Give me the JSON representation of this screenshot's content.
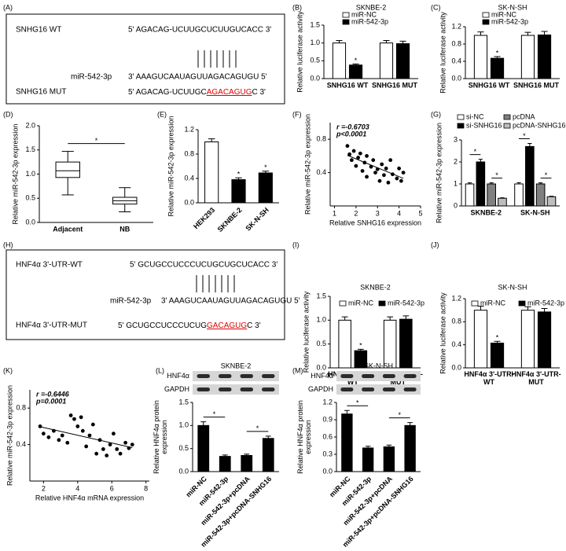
{
  "panel_labels": [
    "(A)",
    "(B)",
    "(C)",
    "(D)",
    "(E)",
    "(F)",
    "(G)",
    "(H)",
    "(I)",
    "(J)",
    "(K)",
    "(L)",
    "(M)"
  ],
  "sequences": [
    {
      "rows": [
        {
          "name": "SNHG16 WT",
          "seq": "5' AGACAG-UCUUGCUCUUGUCACC 3'"
        },
        {
          "name": "miR-542-3p",
          "seq": "3' AAAGUCAAUAGUUAGACAGUGU 5'"
        },
        {
          "name": "SNHG16 MUT",
          "seq": "5' AGACAG-UCUUGC",
          "mutation": "AGACAGUG",
          "tail": "C 3'"
        }
      ]
    },
    {
      "rows": [
        {
          "name": "HNF4α 3'-UTR-WT",
          "seq": "5' GCUGCCUCCCUCUGCUGCUCACC 3'"
        },
        {
          "name": "miR-542-3p",
          "seq": "3' AAAGUCAAUAGUUAGACAGUGU 5'"
        },
        {
          "name": "HNF4α 3'-UTR-MUT",
          "seq": "5' GCUGCCUCCCUCUG",
          "mutation": "GACAGUG",
          "tail": "C 3'"
        }
      ]
    }
  ],
  "chart_data": [
    {
      "type": "bar",
      "title": "SKNBE-2",
      "ylabel": "Relative luciferase activity",
      "categories": [
        "SNHG16 WT",
        "SNHG16 MUT"
      ],
      "series": [
        {
          "name": "miR-NC",
          "color": "#ffffff",
          "values": [
            1.0,
            1.0
          ],
          "errors": [
            0.07,
            0.07
          ]
        },
        {
          "name": "miR-542-3p",
          "color": "#000000",
          "values": [
            0.38,
            0.98
          ],
          "errors": [
            0.03,
            0.07
          ]
        }
      ],
      "ylim": [
        0,
        1.5
      ],
      "yticks": [
        {
          "value": 0,
          "label": "0.0"
        },
        {
          "value": 0.5,
          "label": "0.5"
        },
        {
          "value": 1,
          "label": "1.0"
        },
        {
          "value": 1.5,
          "label": "1.5"
        }
      ],
      "annotations": [
        "*"
      ]
    },
    {
      "type": "bar",
      "title": "SK-N-SH",
      "ylabel": "Relative luciferase activity",
      "categories": [
        "SNHG16 WT",
        "SNHG16 MUT"
      ],
      "series": [
        {
          "name": "miR-NC",
          "color": "#ffffff",
          "values": [
            1.0,
            1.0
          ],
          "errors": [
            0.08,
            0.07
          ]
        },
        {
          "name": "miR-542-3p",
          "color": "#000000",
          "values": [
            0.47,
            1.01
          ],
          "errors": [
            0.04,
            0.08
          ]
        }
      ],
      "ylim": [
        0,
        1.2
      ],
      "yticks": [
        {
          "value": 0,
          "label": "0.0"
        },
        {
          "value": 0.4,
          "label": "0.4"
        },
        {
          "value": 0.8,
          "label": "0.8"
        },
        {
          "value": 1.2,
          "label": "1.2"
        }
      ],
      "annotations": [
        "*"
      ]
    },
    {
      "type": "box",
      "ylabel": "Relative miR-542-3p expression",
      "categories": [
        "Adjacent",
        "NB"
      ],
      "boxes": [
        {
          "min": 0.57,
          "q1": 0.93,
          "median": 1.07,
          "q3": 1.25,
          "max": 1.47
        },
        {
          "min": 0.22,
          "q1": 0.38,
          "median": 0.45,
          "q3": 0.52,
          "max": 0.72
        }
      ],
      "ylim": [
        0,
        2
      ],
      "yticks": [
        {
          "value": 0,
          "label": "0.0"
        },
        {
          "value": 0.5,
          "label": "0.5"
        },
        {
          "value": 1,
          "label": "1.0"
        },
        {
          "value": 1.5,
          "label": "1.5"
        },
        {
          "value": 2,
          "label": "2.0"
        }
      ],
      "annotations": [
        "*"
      ]
    },
    {
      "type": "bar",
      "ylabel": "Relative miR-542-3p expression",
      "categories": [
        "HEK293",
        "SKNBE-2",
        "SK-N-SH"
      ],
      "series": [
        {
          "colors": [
            "#ffffff",
            "#000000",
            "#000000"
          ],
          "values": [
            1.0,
            0.38,
            0.49
          ],
          "errors": [
            0.05,
            0.03,
            0.03
          ]
        }
      ],
      "ylim": [
        0,
        1.2
      ],
      "yticks": [
        {
          "value": 0,
          "label": "0.0"
        },
        {
          "value": 0.4,
          "label": "0.4"
        },
        {
          "value": 0.8,
          "label": "0.8"
        },
        {
          "value": 1.2,
          "label": "1.2"
        }
      ],
      "annotations": [
        "*",
        "*"
      ]
    },
    {
      "type": "scatter",
      "xlabel": "Relative SNHG16 expression",
      "ylabel": "Relative miR-542-3p expression",
      "stats": [
        "r =-0.6703",
        "p<0.0001"
      ],
      "x": [
        1.6,
        1.7,
        1.8,
        1.9,
        2.0,
        2.1,
        2.2,
        2.3,
        2.4,
        2.5,
        2.5,
        2.7,
        2.8,
        2.9,
        3.0,
        3.1,
        3.2,
        3.3,
        3.4,
        3.5,
        3.6,
        3.7,
        3.9,
        4.0,
        4.1,
        4.2
      ],
      "values": [
        0.72,
        0.62,
        0.55,
        0.66,
        0.48,
        0.58,
        0.63,
        0.42,
        0.52,
        0.6,
        0.35,
        0.47,
        0.55,
        0.4,
        0.44,
        0.3,
        0.5,
        0.37,
        0.45,
        0.28,
        0.55,
        0.38,
        0.33,
        0.45,
        0.3,
        0.4
      ],
      "color": "#000000",
      "xlim": [
        0.8,
        5
      ],
      "xticks": [
        1,
        2,
        3,
        4,
        5
      ],
      "ylim": [
        0,
        1
      ],
      "yticks": [
        0.4,
        0.8
      ]
    },
    {
      "type": "bar",
      "ylabel": "Relative miR-542-3p expression",
      "categories": [
        "SKNBE-2",
        "SK-N-SH"
      ],
      "series": [
        {
          "name": "si-NC",
          "color": "#ffffff",
          "values": [
            1.0,
            1.0
          ],
          "errors": [
            0.05,
            0.06
          ]
        },
        {
          "name": "si-SNHG16",
          "color": "#000000",
          "values": [
            2.0,
            2.7
          ],
          "errors": [
            0.12,
            0.14
          ]
        },
        {
          "name": "pcDNA",
          "color": "#808080",
          "values": [
            1.0,
            1.0
          ],
          "errors": [
            0.05,
            0.05
          ]
        },
        {
          "name": "pcDNA-SNHG16",
          "color": "#bdbdbd",
          "values": [
            0.35,
            0.42
          ],
          "errors": [
            0.02,
            0.02
          ]
        }
      ],
      "ylim": [
        0,
        3
      ],
      "yticks": [
        0,
        1,
        2,
        3
      ],
      "annotations": [
        "*",
        "*",
        "*",
        "*"
      ]
    },
    {
      "type": "bar",
      "title": "SKNBE-2",
      "ylabel": "Relative luciferase activity",
      "categories": [
        "HNF4α 3'-UTR-WT",
        "HNF4α 3'-UTR-MUT"
      ],
      "series": [
        {
          "name": "miR-NC",
          "color": "#ffffff",
          "values": [
            1.0,
            1.0
          ],
          "errors": [
            0.07,
            0.07
          ]
        },
        {
          "name": "miR-542-3p",
          "color": "#000000",
          "values": [
            0.36,
            1.02
          ],
          "errors": [
            0.03,
            0.07
          ]
        }
      ],
      "ylim": [
        0,
        1.5
      ],
      "yticks": [
        {
          "value": 0,
          "label": "0.0"
        },
        {
          "value": 0.5,
          "label": "0.5"
        },
        {
          "value": 1,
          "label": "1.0"
        },
        {
          "value": 1.5,
          "label": "1.5"
        }
      ],
      "annotations": [
        "*"
      ]
    },
    {
      "type": "bar",
      "title": "SK-N-SH",
      "ylabel": "Relative luciferase activity",
      "categories": [
        "HNF4α 3'-UTR-WT",
        "HNF4α 3'-UTR-MUT"
      ],
      "series": [
        {
          "name": "miR-NC",
          "color": "#ffffff",
          "values": [
            1.0,
            1.0
          ],
          "errors": [
            0.07,
            0.06
          ]
        },
        {
          "name": "miR-542-3p",
          "color": "#000000",
          "values": [
            0.43,
            0.97
          ],
          "errors": [
            0.03,
            0.06
          ]
        }
      ],
      "ylim": [
        0,
        1.2
      ],
      "yticks": [
        {
          "value": 0,
          "label": "0.0"
        },
        {
          "value": 0.4,
          "label": "0.4"
        },
        {
          "value": 0.8,
          "label": "0.8"
        },
        {
          "value": 1.2,
          "label": "1.2"
        }
      ],
      "annotations": [
        "*"
      ]
    },
    {
      "type": "scatter",
      "xlabel": "Relative HNF4α mRNA expression",
      "ylabel": "Relative miR-542-3p expression",
      "stats": [
        "r =-0.6446",
        "p=0.0001"
      ],
      "x": [
        1.8,
        2.0,
        2.3,
        2.6,
        2.9,
        3.1,
        3.4,
        3.6,
        3.8,
        4.0,
        4.2,
        4.3,
        4.5,
        4.7,
        4.9,
        5.1,
        5.3,
        5.5,
        5.7,
        5.9,
        6.1,
        6.3,
        6.5,
        6.8,
        7.0,
        7.2
      ],
      "values": [
        0.6,
        0.52,
        0.48,
        0.55,
        0.45,
        0.5,
        0.42,
        0.72,
        0.68,
        0.6,
        0.7,
        0.55,
        0.38,
        0.5,
        0.62,
        0.3,
        0.45,
        0.35,
        0.28,
        0.4,
        0.52,
        0.35,
        0.3,
        0.42,
        0.36,
        0.4
      ],
      "color": "#000000",
      "xlim": [
        1.2,
        8.2
      ],
      "xticks": [
        2,
        4,
        6,
        8
      ],
      "ylim": [
        0,
        1
      ],
      "yticks": [
        0.4,
        0.8
      ]
    },
    {
      "type": "bar",
      "title": "SKNBE-2",
      "ylabel": "Relative HNF4α protein expression",
      "blot_labels": [
        "HNF4α",
        "GAPDH"
      ],
      "categories": [
        "miR-NC",
        "miR-542-3p",
        "miR-542-3p+pcDNA",
        "miR-542-3p+pcDNA-SNHG16"
      ],
      "series": [
        {
          "color": "#000000",
          "values": [
            1.0,
            0.33,
            0.35,
            0.72
          ],
          "errors": [
            0.08,
            0.03,
            0.03,
            0.05
          ]
        }
      ],
      "ylim": [
        0,
        1.5
      ],
      "yticks": [
        {
          "value": 0,
          "label": "0.0"
        },
        {
          "value": 0.5,
          "label": "0.5"
        },
        {
          "value": 1,
          "label": "1.0"
        },
        {
          "value": 1.5,
          "label": "1.5"
        }
      ],
      "annotations": [
        "*",
        "*"
      ]
    },
    {
      "type": "bar",
      "title": "SK-N-SH",
      "ylabel": "Relative HNF4α protein expression",
      "blot_labels": [
        "HNF4α",
        "GAPDH"
      ],
      "categories": [
        "miR-NC",
        "miR-542-3p",
        "miR-542-3p+pcDNA",
        "miR-542-3p+pcDNA-SNHG16"
      ],
      "series": [
        {
          "color": "#000000",
          "values": [
            1.0,
            0.41,
            0.43,
            0.8
          ],
          "errors": [
            0.06,
            0.03,
            0.03,
            0.05
          ]
        }
      ],
      "ylim": [
        0,
        1.2
      ],
      "yticks": [
        {
          "value": 0,
          "label": "0.0"
        },
        {
          "value": 0.3,
          "label": "0.3"
        },
        {
          "value": 0.6,
          "label": "0.6"
        },
        {
          "value": 0.9,
          "label": "0.9"
        },
        {
          "value": 1.2,
          "label": "1.2"
        }
      ],
      "annotations": [
        "*",
        "*"
      ]
    }
  ]
}
